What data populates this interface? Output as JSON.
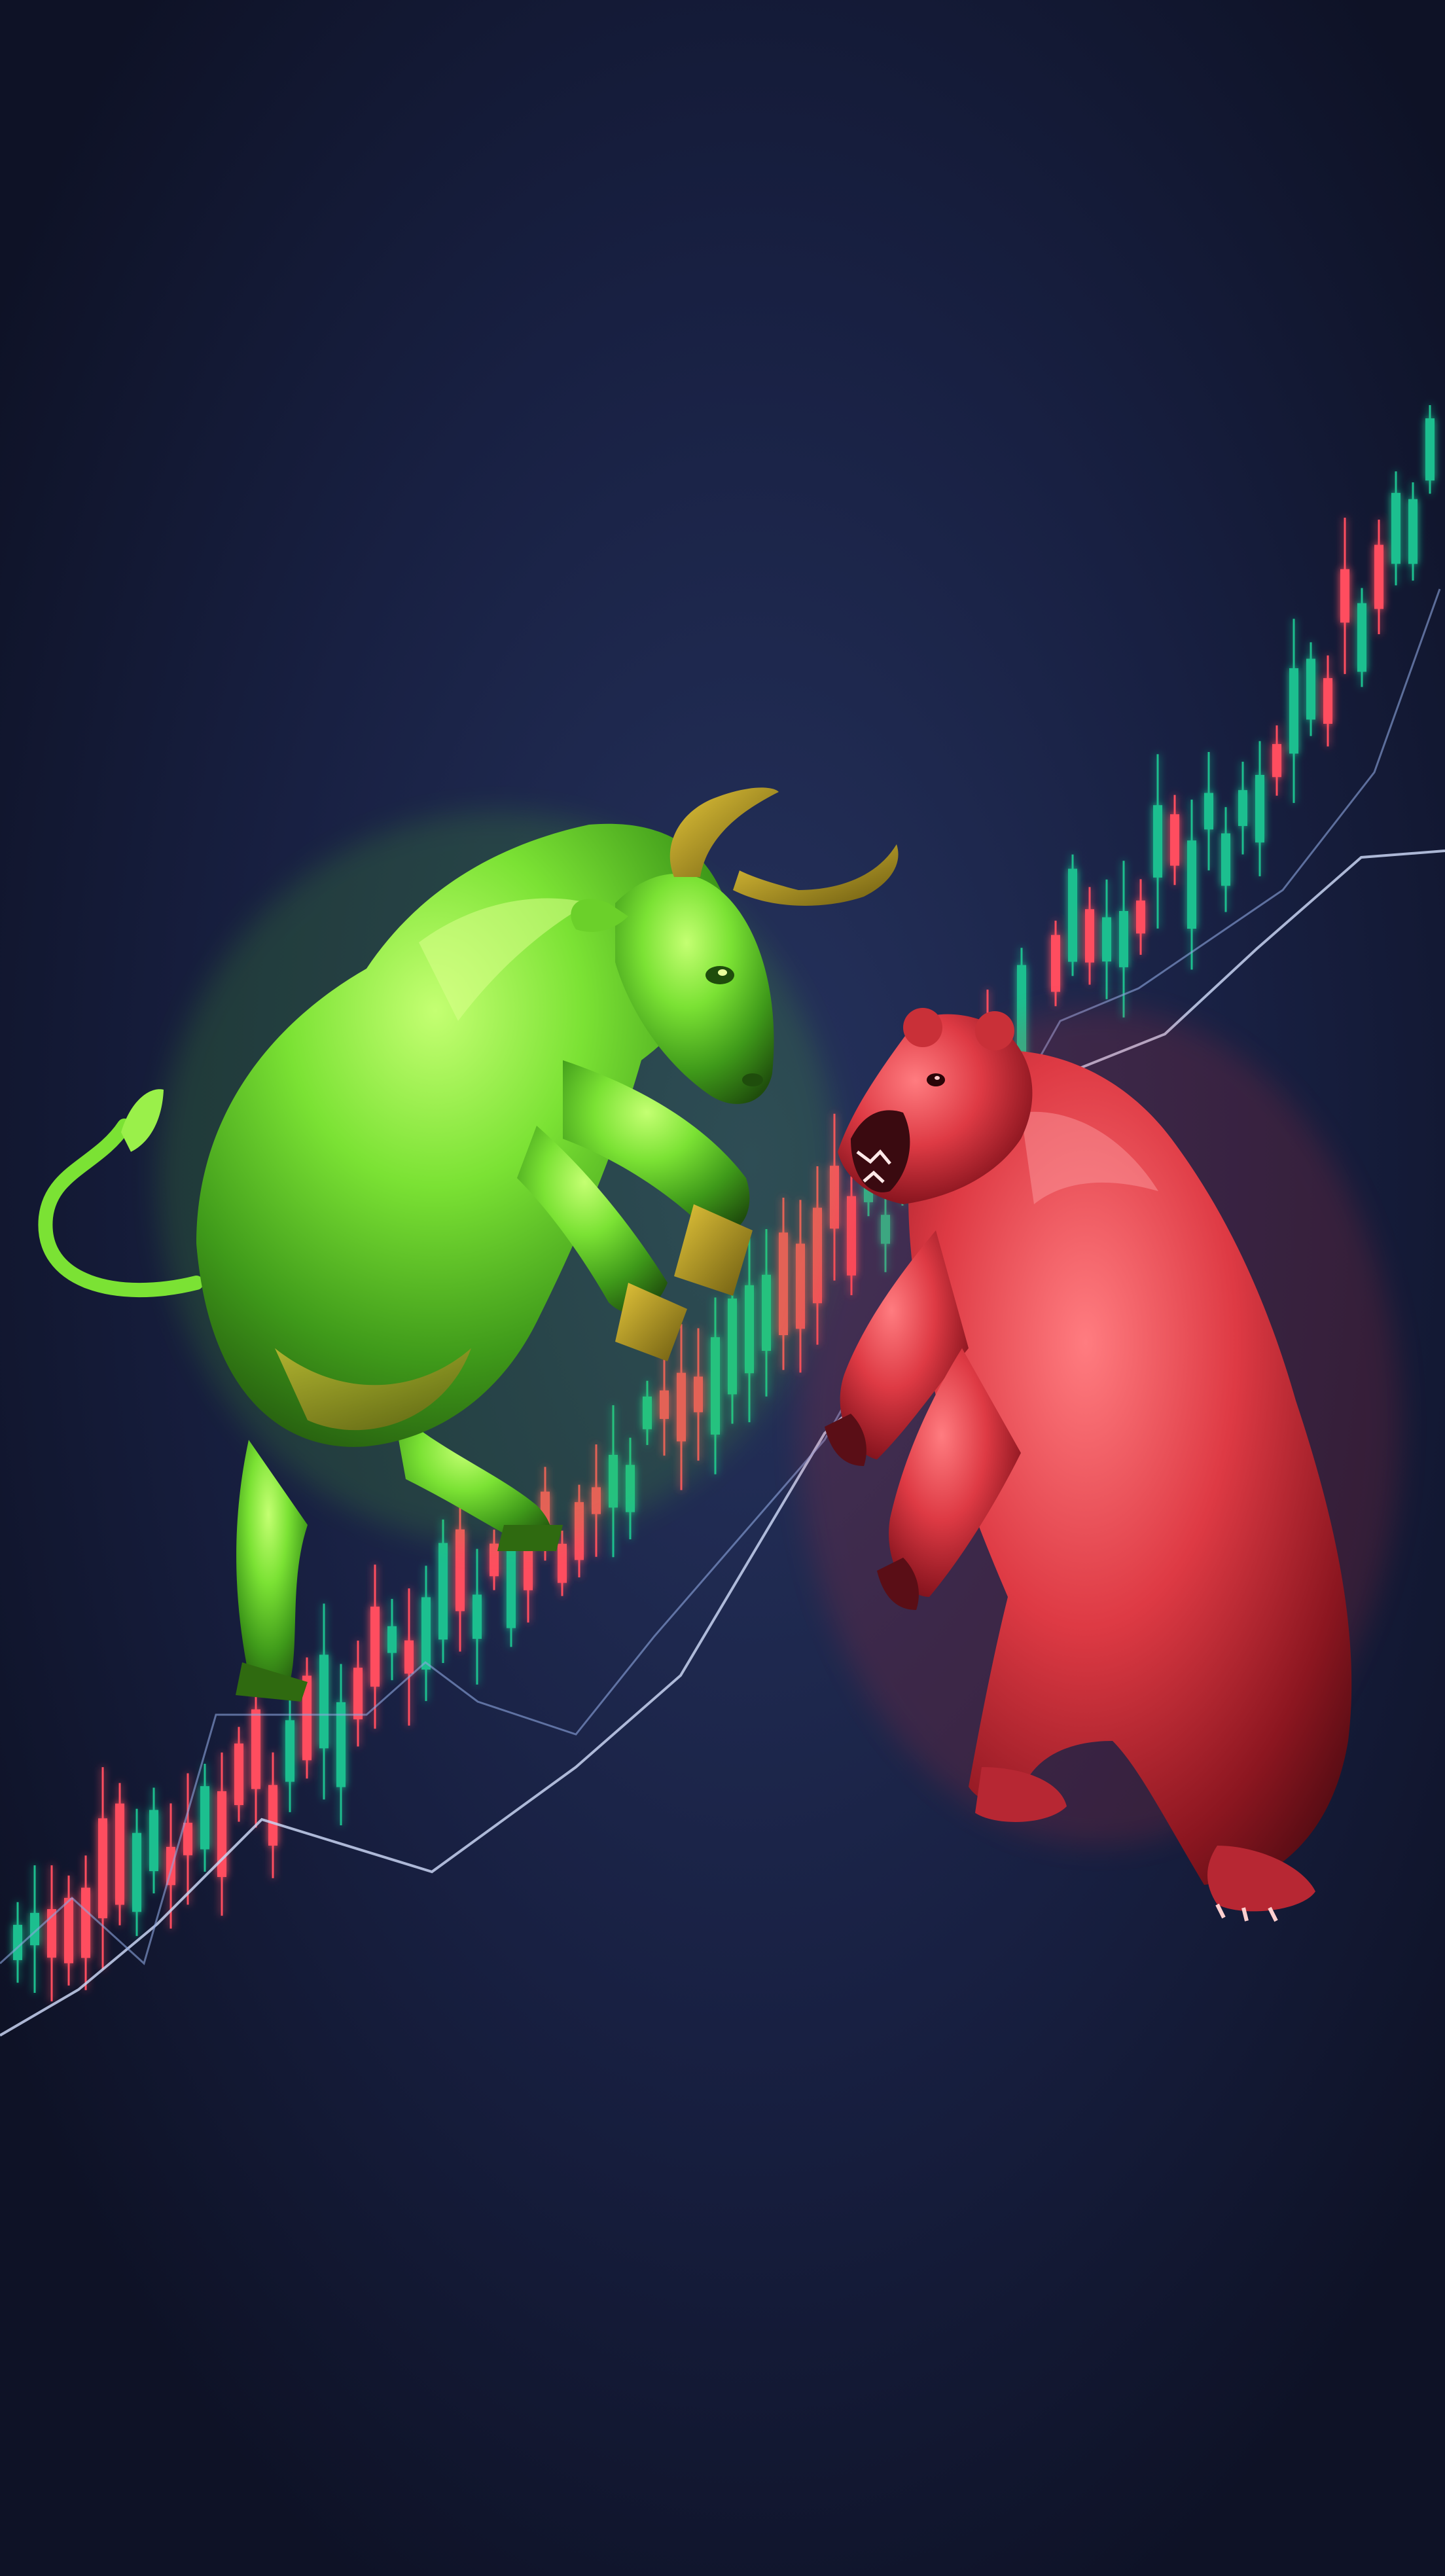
{
  "scene": {
    "subject": "bull-vs-bear-market",
    "colors": {
      "background_top": "#121730",
      "background_mid": "#26335e",
      "background_bottom": "#0e1226",
      "bull_light": "#a8ff5a",
      "bull_mid": "#5ccf2a",
      "bull_dark": "#2a6a12",
      "bull_gold": "#c8a722",
      "bear_light": "#ff6a70",
      "bear_mid": "#d8323c",
      "bear_dark": "#5a0e16",
      "candle_up": "#1fbf8f",
      "candle_down": "#ff4d5e",
      "trend_line": "#c8d4f2"
    },
    "icons": [
      "bull-figure",
      "bear-figure",
      "candlestick-chart",
      "trend-line"
    ]
  }
}
